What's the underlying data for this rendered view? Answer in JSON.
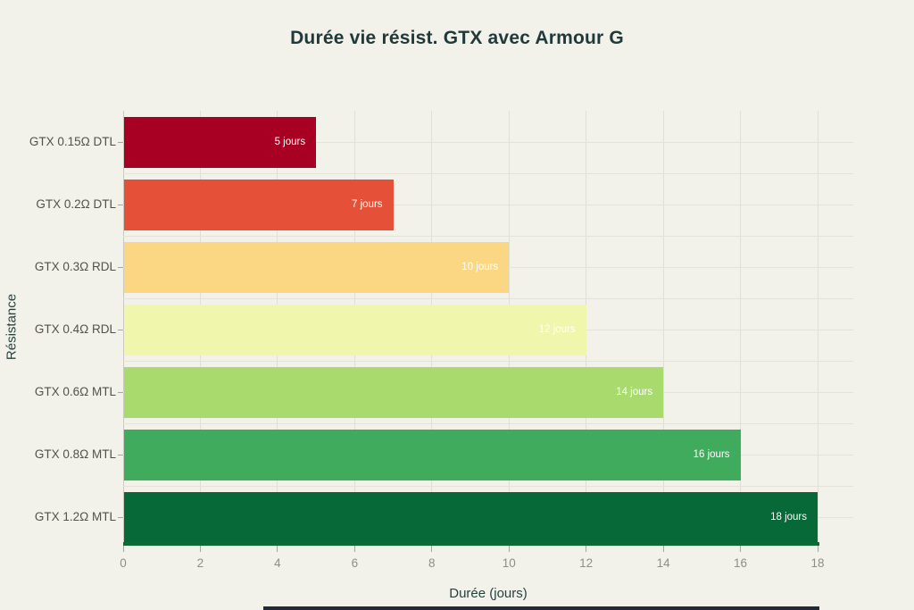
{
  "page": {
    "background": "#F2F2EB",
    "bottom_strip_color": "#202A3C"
  },
  "chart_data": {
    "type": "bar",
    "orientation": "horizontal",
    "title": "Durée vie résist. GTX avec Armour G",
    "xlabel": "Durée (jours)",
    "ylabel": "Résistance",
    "categories": [
      "GTX 0.15Ω DTL",
      "GTX 0.2Ω DTL",
      "GTX 0.3Ω RDL",
      "GTX 0.4Ω RDL",
      "GTX 0.6Ω MTL",
      "GTX 0.8Ω MTL",
      "GTX 1.2Ω MTL"
    ],
    "values": [
      5,
      7,
      10,
      12,
      14,
      16,
      18
    ],
    "value_labels": [
      "5 jours",
      "7 jours",
      "10 jours",
      "12 jours",
      "14 jours",
      "16 jours",
      "18 jours"
    ],
    "bar_colors": [
      "#A80023",
      "#E55138",
      "#FBD683",
      "#F0F6AC",
      "#A8DA6E",
      "#41AB5D",
      "#066937"
    ],
    "xlim": [
      0,
      18
    ],
    "x_ticks": [
      0,
      2,
      4,
      6,
      8,
      10,
      12,
      14,
      16,
      18
    ],
    "grid": true,
    "legend": "none",
    "axis_line_color": "#0E6A35",
    "value_label_color": "#FFFFFF",
    "title_color": "#20393B",
    "axis_title_color": "#26403F",
    "tick_label_color": "#8E8E88",
    "category_label_color": "#52504C"
  }
}
